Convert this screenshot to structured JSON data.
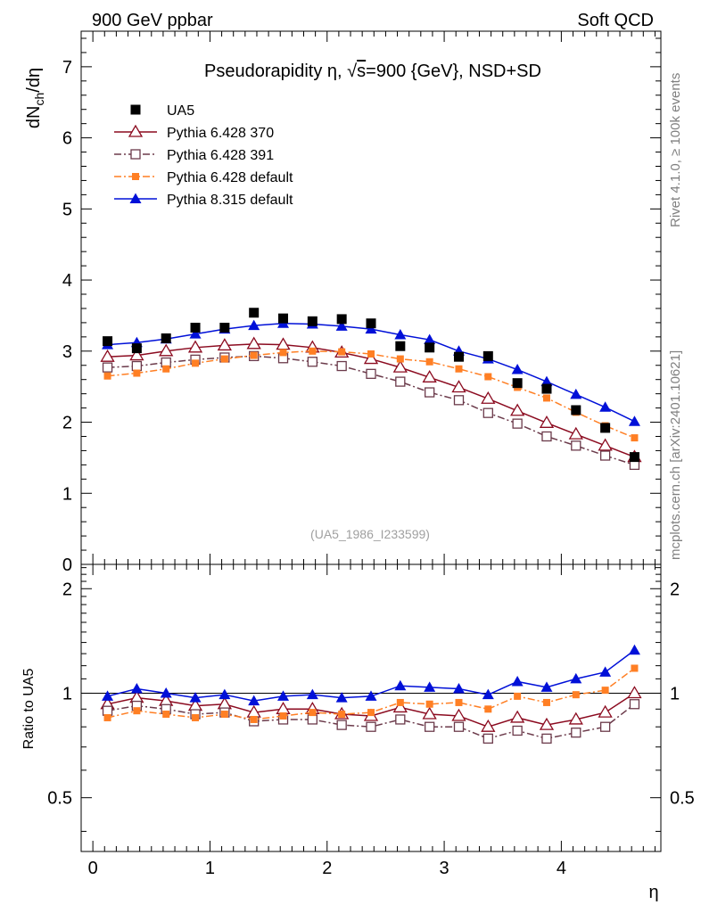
{
  "header": {
    "left": "900 GeV ppbar",
    "right": "Soft QCD"
  },
  "side": {
    "rivet": "Rivet 4.1.0, ≥ 100k events",
    "mcplots": "mcplots.cern.ch [arXiv:2401.10621]"
  },
  "chart_data": [
    {
      "type": "line",
      "title_prefix": "Pseudorapidity",
      "title_eta": "η, ",
      "title_sqrt": "√",
      "title_s": "s",
      "title_suffix": "=900 {GeV}, NSD+SD",
      "ylabel_main": "dN",
      "ylabel_sub": "ch",
      "ylabel_tail": "/dη",
      "xlabel": "η",
      "xlim": [
        -0.1,
        4.85
      ],
      "ylim": [
        0,
        7.5
      ],
      "yticks": [
        0,
        1,
        2,
        3,
        4,
        5,
        6,
        7
      ],
      "xticks": [
        0,
        1,
        2,
        3,
        4
      ],
      "grid": false,
      "legend_position": "top-left",
      "reference_label": "(UA5_1986_I233599)",
      "x": [
        0.125,
        0.375,
        0.625,
        0.875,
        1.125,
        1.375,
        1.625,
        1.875,
        2.125,
        2.375,
        2.625,
        2.875,
        3.125,
        3.375,
        3.625,
        3.875,
        4.125,
        4.375,
        4.625
      ],
      "series": [
        {
          "name": "UA5",
          "color": "#000000",
          "marker": "filled-square",
          "line": "none",
          "values": [
            3.14,
            3.04,
            3.18,
            3.33,
            3.33,
            3.54,
            3.46,
            3.42,
            3.45,
            3.39,
            3.07,
            3.05,
            2.92,
            2.93,
            2.55,
            2.47,
            2.17,
            1.92,
            1.51
          ]
        },
        {
          "name": "Pythia 6.428 370",
          "color": "#8b0a1f",
          "marker": "open-triangle",
          "line": "solid",
          "values": [
            2.92,
            2.94,
            3.0,
            3.05,
            3.08,
            3.1,
            3.09,
            3.05,
            2.98,
            2.89,
            2.77,
            2.63,
            2.49,
            2.33,
            2.16,
            1.99,
            1.83,
            1.67,
            1.51
          ]
        },
        {
          "name": "Pythia 6.428 391",
          "color": "#6b3a4a",
          "marker": "open-square",
          "line": "dashdot",
          "values": [
            2.77,
            2.79,
            2.84,
            2.88,
            2.91,
            2.93,
            2.9,
            2.85,
            2.79,
            2.68,
            2.57,
            2.42,
            2.31,
            2.13,
            1.98,
            1.8,
            1.67,
            1.53,
            1.4
          ]
        },
        {
          "name": "Pythia 6.428 default",
          "color": "#ff7f24",
          "marker": "small-filled-square",
          "line": "dashdot",
          "values": [
            2.65,
            2.69,
            2.75,
            2.83,
            2.89,
            2.94,
            2.98,
            3.0,
            2.99,
            2.96,
            2.89,
            2.85,
            2.75,
            2.64,
            2.49,
            2.34,
            2.14,
            1.95,
            1.78
          ]
        },
        {
          "name": "Pythia 8.315 default",
          "color": "#0010d8",
          "marker": "filled-triangle",
          "line": "solid",
          "values": [
            3.09,
            3.12,
            3.17,
            3.24,
            3.31,
            3.36,
            3.39,
            3.38,
            3.35,
            3.31,
            3.23,
            3.16,
            3.0,
            2.89,
            2.74,
            2.57,
            2.39,
            2.21,
            2.01
          ]
        }
      ]
    },
    {
      "type": "line",
      "ylabel": "Ratio to UA5",
      "xlabel": "η",
      "xlim": [
        -0.1,
        4.85
      ],
      "ylim": [
        0.35,
        2.35
      ],
      "ytick_labels": [
        "0.5",
        "1",
        "2"
      ],
      "yticks": [
        0.5,
        1,
        2
      ],
      "reference_line": 1,
      "x": [
        0.125,
        0.375,
        0.625,
        0.875,
        1.125,
        1.375,
        1.625,
        1.875,
        2.125,
        2.375,
        2.625,
        2.875,
        3.125,
        3.375,
        3.625,
        3.875,
        4.125,
        4.375,
        4.625
      ],
      "series": [
        {
          "name": "Pythia 6.428 370",
          "color": "#8b0a1f",
          "marker": "open-triangle",
          "line": "solid",
          "values": [
            0.93,
            0.97,
            0.95,
            0.92,
            0.93,
            0.88,
            0.9,
            0.9,
            0.87,
            0.86,
            0.91,
            0.87,
            0.86,
            0.8,
            0.85,
            0.81,
            0.84,
            0.88,
            1.0
          ]
        },
        {
          "name": "Pythia 6.428 391",
          "color": "#6b3a4a",
          "marker": "open-square",
          "line": "dashdot",
          "values": [
            0.89,
            0.92,
            0.9,
            0.87,
            0.88,
            0.83,
            0.84,
            0.84,
            0.81,
            0.8,
            0.84,
            0.8,
            0.8,
            0.74,
            0.78,
            0.74,
            0.77,
            0.8,
            0.93
          ]
        },
        {
          "name": "Pythia 6.428 default",
          "color": "#ff7f24",
          "marker": "small-filled-square",
          "line": "dashdot",
          "values": [
            0.85,
            0.89,
            0.87,
            0.85,
            0.87,
            0.84,
            0.86,
            0.88,
            0.87,
            0.88,
            0.94,
            0.93,
            0.94,
            0.9,
            0.98,
            0.94,
            0.99,
            1.02,
            1.18
          ]
        },
        {
          "name": "Pythia 8.315 default",
          "color": "#0010d8",
          "marker": "filled-triangle",
          "line": "solid",
          "values": [
            0.98,
            1.03,
            1.0,
            0.97,
            0.99,
            0.95,
            0.98,
            0.99,
            0.97,
            0.98,
            1.05,
            1.04,
            1.03,
            0.99,
            1.08,
            1.04,
            1.1,
            1.15,
            1.33
          ]
        }
      ]
    }
  ]
}
